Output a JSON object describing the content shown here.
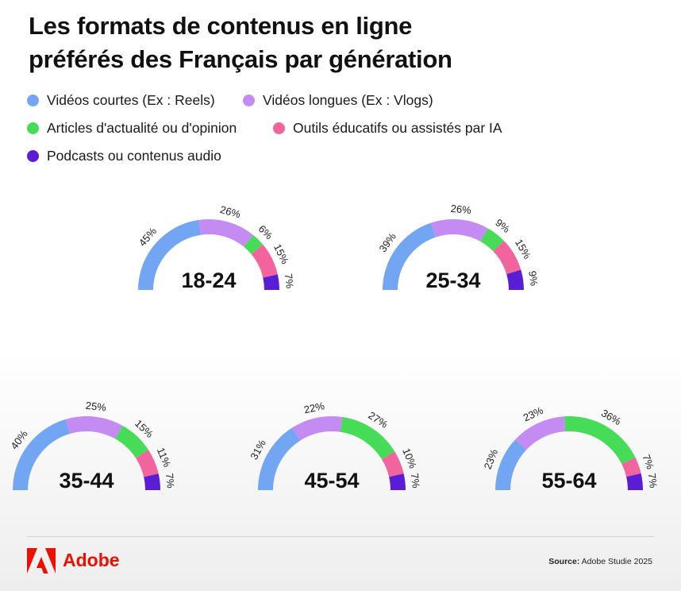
{
  "title_line1": "Les formats de contenus en ligne",
  "title_line2": "préférés des Français par génération",
  "legend": [
    {
      "label": "Vidéos courtes  (Ex : Reels)",
      "color": "#72a6f3"
    },
    {
      "label": "Vidéos longues (Ex : Vlogs)",
      "color": "#c48cf2"
    },
    {
      "label": "Articles d'actualité ou d'opinion",
      "color": "#46dc58"
    },
    {
      "label": "Outils éducatifs ou assistés par IA",
      "color": "#f2649e"
    },
    {
      "label": "Podcasts ou contenus audio",
      "color": "#5a1dd6"
    }
  ],
  "chart_data": {
    "type": "gauge",
    "title": "Les formats de contenus en ligne préférés des Français par génération",
    "categories": [
      "Vidéos courtes  (Ex : Reels)",
      "Vidéos longues (Ex : Vlogs)",
      "Articles d'actualité ou d'opinion",
      "Outils éducatifs ou assistés par IA",
      "Podcasts ou contenus audio"
    ],
    "colors": [
      "#72a6f3",
      "#c48cf2",
      "#46dc58",
      "#f2649e",
      "#5a1dd6"
    ],
    "series": [
      {
        "name": "18-24",
        "values": [
          45,
          26,
          6,
          15,
          7
        ]
      },
      {
        "name": "25-34",
        "values": [
          39,
          26,
          9,
          15,
          9
        ]
      },
      {
        "name": "35-44",
        "values": [
          40,
          25,
          15,
          11,
          7
        ]
      },
      {
        "name": "45-54",
        "values": [
          31,
          22,
          27,
          10,
          7
        ]
      },
      {
        "name": "55-64",
        "values": [
          23,
          23,
          36,
          7,
          7
        ]
      }
    ]
  },
  "footer": {
    "brand": "Adobe",
    "source_label": "Source:",
    "source_text": "Adobe Studie 2025"
  }
}
